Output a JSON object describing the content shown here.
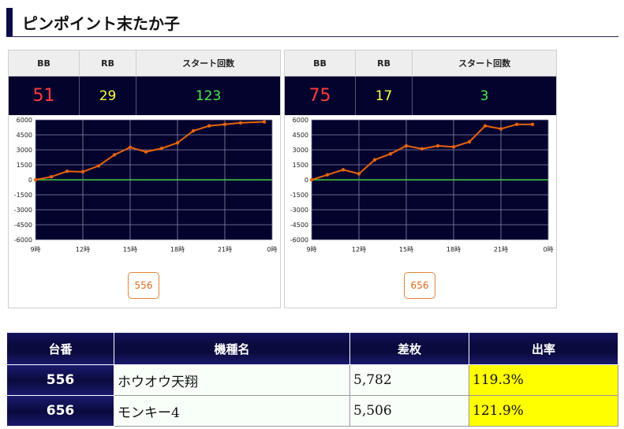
{
  "page_title": "ピンポイント末たか子",
  "colors": {
    "header_accent": "#0a0a4a",
    "stat_bg": "#03032e",
    "bb_color": "#ff3b3b",
    "rb_color": "#ffff44",
    "start_color": "#44ee44",
    "line_color": "#e8640a",
    "zero_line": "#44cc44",
    "rate_bg": "#ffff00"
  },
  "stat_headers": {
    "bb": "BB",
    "rb": "RB",
    "start": "スタート回数"
  },
  "machines": [
    {
      "bb": "51",
      "rb": "29",
      "start": "123",
      "button": "556",
      "chart_data": {
        "type": "line",
        "x_ticks": [
          "9時",
          "12時",
          "15時",
          "18時",
          "21時",
          "0時"
        ],
        "y_ticks": [
          "6000",
          "4500",
          "3000",
          "1500",
          "0",
          "-1500",
          "-3000",
          "-4500",
          "-6000"
        ],
        "ylim": [
          -6000,
          6000
        ],
        "xlim": [
          9,
          24
        ],
        "grid": true,
        "series": [
          {
            "x": [
              9,
              10,
              11,
              12,
              13,
              14,
              15,
              16,
              17,
              18,
              19,
              20,
              21,
              22,
              23.5
            ],
            "values": [
              0,
              300,
              850,
              800,
              1400,
              2500,
              3250,
              2800,
              3150,
              3700,
              4900,
              5400,
              5550,
              5700,
              5800
            ]
          }
        ]
      }
    },
    {
      "bb": "75",
      "rb": "17",
      "start": "3",
      "button": "656",
      "chart_data": {
        "type": "line",
        "x_ticks": [
          "9時",
          "12時",
          "15時",
          "18時",
          "21時",
          "0時"
        ],
        "y_ticks": [
          "6000",
          "4500",
          "3000",
          "1500",
          "0",
          "-1500",
          "-3000",
          "-4500",
          "-6000"
        ],
        "ylim": [
          -6000,
          6000
        ],
        "xlim": [
          9,
          24
        ],
        "grid": true,
        "series": [
          {
            "x": [
              9,
              10,
              11,
              12,
              13,
              14,
              15,
              16,
              17,
              18,
              19,
              20,
              21,
              22,
              23
            ],
            "values": [
              0,
              500,
              1000,
              600,
              2000,
              2600,
              3400,
              3100,
              3400,
              3300,
              3800,
              5400,
              5100,
              5550,
              5550
            ]
          }
        ]
      }
    }
  ],
  "table": {
    "headers": {
      "number": "台番",
      "model": "機種名",
      "diff": "差枚",
      "rate": "出率"
    },
    "rows": [
      {
        "number": "556",
        "model": "ホウオウ天翔",
        "diff": "5,782",
        "rate": "119.3%"
      },
      {
        "number": "656",
        "model": "モンキー4",
        "diff": "5,506",
        "rate": "121.9%"
      }
    ]
  }
}
